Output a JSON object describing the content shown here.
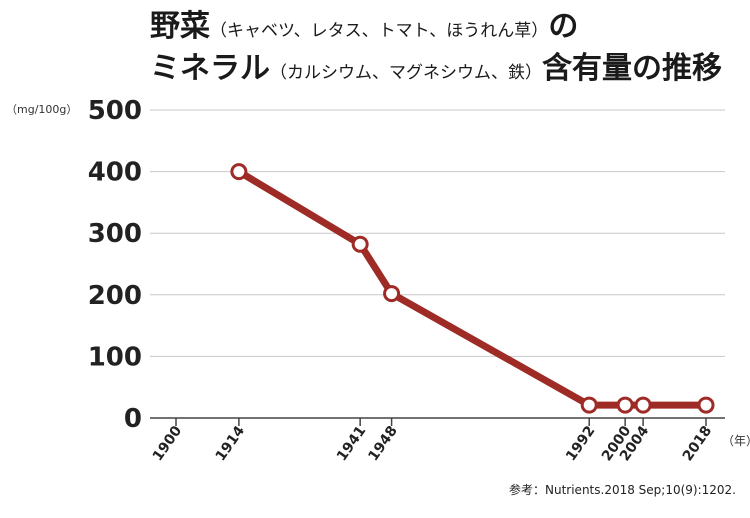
{
  "title": {
    "line1_main": "野菜",
    "line1_sub": "（キャベツ、レタス、トマト、ほうれん草）",
    "line1_end": "の",
    "line2_main": "ミネラル",
    "line2_sub": "（カルシウム、マグネシウム、鉄）",
    "line2_end": "含有量の推移"
  },
  "unit_label": "（mg/100g）",
  "source": "参考：Nutrients.2018 Sep;10(9):1202.",
  "chart_data": {
    "type": "line",
    "x_unit_label": "（年）",
    "y_unit_label": "（mg/100g）",
    "xlim": [
      1900,
      2018
    ],
    "ylim": [
      0,
      500
    ],
    "x_ticks": [
      1900,
      1914,
      1941,
      1948,
      1992,
      2000,
      2004,
      2018
    ],
    "y_ticks": [
      0,
      100,
      200,
      300,
      400,
      500
    ],
    "grid": true,
    "series": [
      {
        "x": [
          1914,
          1941,
          1948,
          1992,
          2000,
          2004,
          2018
        ],
        "y": [
          400,
          282,
          202,
          21,
          21,
          21,
          21
        ]
      }
    ],
    "line_color": "#9e2b25",
    "marker_fill": "#ffffff"
  }
}
